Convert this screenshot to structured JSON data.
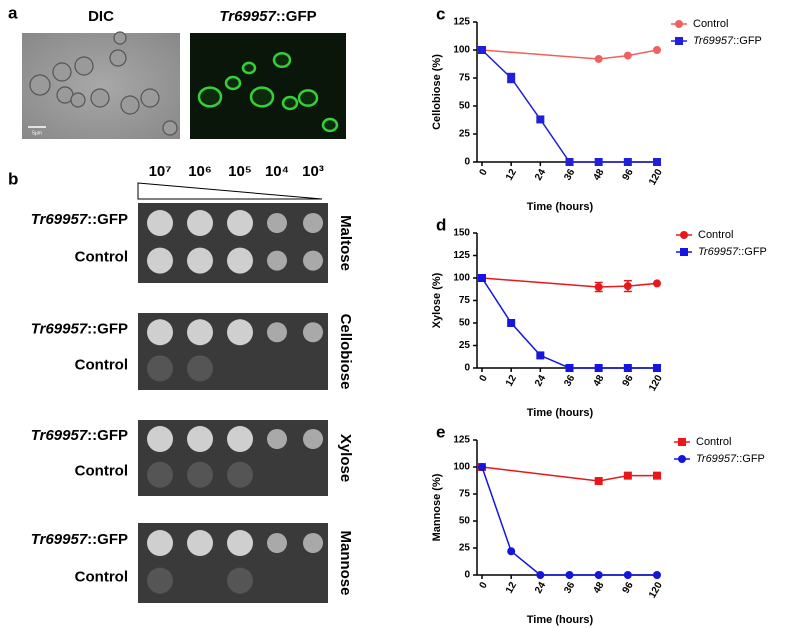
{
  "panel_a": {
    "label": "a",
    "images": [
      {
        "title": "DIC"
      },
      {
        "title": "Tr69957::GFP"
      }
    ],
    "scale_bar": "5μm"
  },
  "panel_b": {
    "label": "b",
    "dilutions": [
      "10⁷",
      "10⁶",
      "10⁵",
      "10⁴",
      "10³"
    ],
    "plates": [
      {
        "sugar": "Maltose",
        "strains": [
          "Tr69957::GFP",
          "Control"
        ]
      },
      {
        "sugar": "Cellobiose",
        "strains": [
          "Tr69957::GFP",
          "Control"
        ]
      },
      {
        "sugar": "Xylose",
        "strains": [
          "Tr69957::GFP",
          "Control"
        ]
      },
      {
        "sugar": "Mannose",
        "strains": [
          "Tr69957::GFP",
          "Control"
        ]
      }
    ]
  },
  "chart_data": [
    {
      "type": "line",
      "label": "c",
      "y_label": "Cellobiose (%)",
      "x_label": "Time (hours)",
      "categories": [
        "0",
        "12",
        "24",
        "36",
        "48",
        "96",
        "120"
      ],
      "ylim": [
        0,
        125
      ],
      "yticks": [
        0,
        25,
        50,
        75,
        100,
        125
      ],
      "series": [
        {
          "name": "Control",
          "color": "#f0605e",
          "marker": "circle",
          "x": [
            "0",
            "48",
            "96",
            "120"
          ],
          "values": [
            100,
            92,
            95,
            100
          ],
          "errors": [
            null,
            null,
            null,
            null
          ]
        },
        {
          "name": "Tr69957::GFP",
          "color": "#2020d8",
          "marker": "square",
          "x": [
            "0",
            "12",
            "24",
            "36",
            "48",
            "96",
            "120"
          ],
          "values": [
            100,
            75,
            38,
            0,
            0,
            0,
            0
          ],
          "errors": [
            null,
            4,
            null,
            null,
            null,
            null,
            null
          ]
        }
      ]
    },
    {
      "type": "line",
      "label": "d",
      "y_label": "Xylose (%)",
      "x_label": "Time (hours)",
      "categories": [
        "0",
        "12",
        "24",
        "36",
        "48",
        "96",
        "120"
      ],
      "ylim": [
        0,
        150
      ],
      "yticks": [
        0,
        25,
        50,
        75,
        100,
        125,
        150
      ],
      "series": [
        {
          "name": "Control",
          "color": "#e8181a",
          "marker": "circle",
          "x": [
            "0",
            "48",
            "96",
            "120"
          ],
          "values": [
            100,
            90,
            91,
            94
          ],
          "errors": [
            null,
            5,
            6,
            null
          ]
        },
        {
          "name": "Tr69957::GFP",
          "color": "#1515e0",
          "marker": "square",
          "x": [
            "0",
            "12",
            "24",
            "36",
            "48",
            "96",
            "120"
          ],
          "values": [
            100,
            50,
            14,
            0,
            0,
            0,
            0
          ],
          "errors": [
            null,
            null,
            null,
            null,
            null,
            null,
            null
          ]
        }
      ]
    },
    {
      "type": "line",
      "label": "e",
      "y_label": "Mannose (%)",
      "x_label": "Time (hours)",
      "categories": [
        "0",
        "12",
        "24",
        "36",
        "48",
        "96",
        "120"
      ],
      "ylim": [
        0,
        125
      ],
      "yticks": [
        0,
        25,
        50,
        75,
        100,
        125
      ],
      "series": [
        {
          "name": "Control",
          "color": "#e8181a",
          "marker": "square",
          "x": [
            "0",
            "48",
            "96",
            "120"
          ],
          "values": [
            100,
            87,
            92,
            92
          ],
          "errors": [
            null,
            null,
            null,
            null
          ]
        },
        {
          "name": "Tr69957::GFP",
          "color": "#1515e0",
          "marker": "circle",
          "x": [
            "0",
            "12",
            "24",
            "36",
            "48",
            "96",
            "120"
          ],
          "values": [
            100,
            22,
            0,
            0,
            0,
            0,
            0
          ],
          "errors": [
            null,
            null,
            null,
            null,
            null,
            null,
            null
          ]
        }
      ]
    }
  ]
}
